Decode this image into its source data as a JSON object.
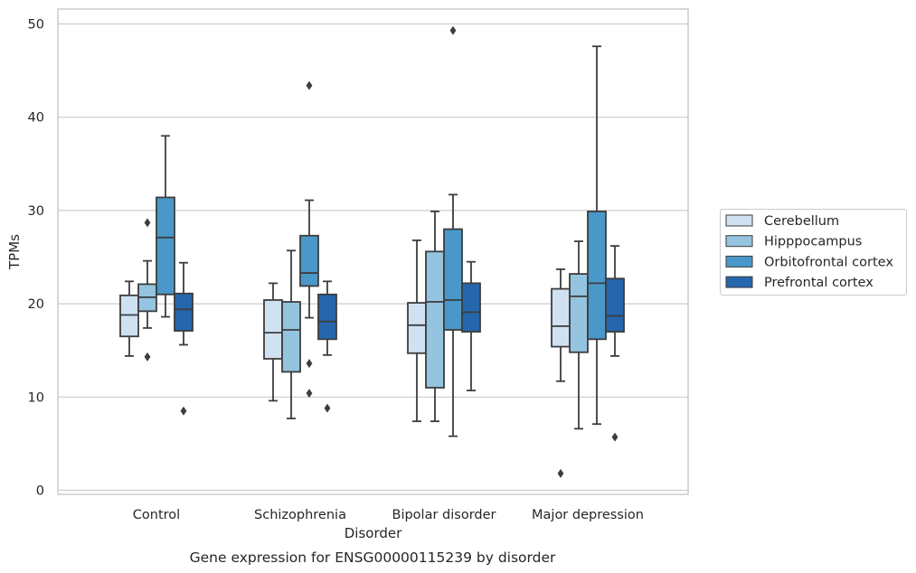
{
  "chart_data": {
    "type": "box",
    "caption": "Gene expression for ENSG00000115239 by disorder",
    "xlabel": "Disorder",
    "ylabel": "TPMs",
    "ylim": [
      -0.5,
      52
    ],
    "yticks": [
      0,
      10,
      20,
      30,
      40,
      50
    ],
    "grid": "horizontal",
    "legend_position": "right",
    "categories": [
      "Control",
      "Schizophrenia",
      "Bipolar disorder",
      "Major depression"
    ],
    "series": [
      {
        "name": "Cerebellum",
        "color": "#d0e1f2",
        "boxes": [
          {
            "whislo": 14.4,
            "q1": 16.5,
            "med": 18.8,
            "q3": 20.9,
            "whishi": 22.4,
            "fliers": []
          },
          {
            "whislo": 9.6,
            "q1": 14.1,
            "med": 16.9,
            "q3": 20.4,
            "whishi": 22.2,
            "fliers": []
          },
          {
            "whislo": 7.4,
            "q1": 14.7,
            "med": 17.7,
            "q3": 20.1,
            "whishi": 26.8,
            "fliers": []
          },
          {
            "whislo": 11.7,
            "q1": 15.4,
            "med": 17.6,
            "q3": 21.6,
            "whishi": 23.7,
            "fliers": [
              1.8
            ]
          }
        ]
      },
      {
        "name": "Hipppocampus",
        "color": "#94c4df",
        "boxes": [
          {
            "whislo": 17.4,
            "q1": 19.2,
            "med": 20.7,
            "q3": 22.1,
            "whishi": 24.6,
            "fliers": [
              14.3,
              28.7
            ]
          },
          {
            "whislo": 7.7,
            "q1": 12.7,
            "med": 17.2,
            "q3": 20.2,
            "whishi": 25.7,
            "fliers": []
          },
          {
            "whislo": 7.4,
            "q1": 11.0,
            "med": 20.2,
            "q3": 25.6,
            "whishi": 29.9,
            "fliers": []
          },
          {
            "whislo": 6.6,
            "q1": 14.8,
            "med": 20.8,
            "q3": 23.2,
            "whishi": 26.7,
            "fliers": []
          }
        ]
      },
      {
        "name": "Orbitofrontal cortex",
        "color": "#4a98c9",
        "boxes": [
          {
            "whislo": 18.6,
            "q1": 21.0,
            "med": 27.1,
            "q3": 31.4,
            "whishi": 38.0,
            "fliers": []
          },
          {
            "whislo": 18.5,
            "q1": 21.9,
            "med": 23.3,
            "q3": 27.3,
            "whishi": 31.1,
            "fliers": [
              43.4,
              13.6,
              10.4
            ]
          },
          {
            "whislo": 5.8,
            "q1": 17.2,
            "med": 20.4,
            "q3": 28.0,
            "whishi": 31.7,
            "fliers": [
              49.3
            ]
          },
          {
            "whislo": 7.1,
            "q1": 16.2,
            "med": 22.2,
            "q3": 29.9,
            "whishi": 47.6,
            "fliers": []
          }
        ]
      },
      {
        "name": "Prefrontal cortex",
        "color": "#2566ad",
        "boxes": [
          {
            "whislo": 15.6,
            "q1": 17.1,
            "med": 19.4,
            "q3": 21.1,
            "whishi": 24.4,
            "fliers": [
              8.5
            ]
          },
          {
            "whislo": 14.5,
            "q1": 16.2,
            "med": 18.1,
            "q3": 21.0,
            "whishi": 22.4,
            "fliers": [
              8.8
            ]
          },
          {
            "whislo": 10.7,
            "q1": 17.0,
            "med": 19.1,
            "q3": 22.2,
            "whishi": 24.5,
            "fliers": []
          },
          {
            "whislo": 14.4,
            "q1": 17.0,
            "med": 18.7,
            "q3": 22.7,
            "whishi": 26.2,
            "fliers": [
              5.7
            ]
          }
        ]
      }
    ]
  }
}
